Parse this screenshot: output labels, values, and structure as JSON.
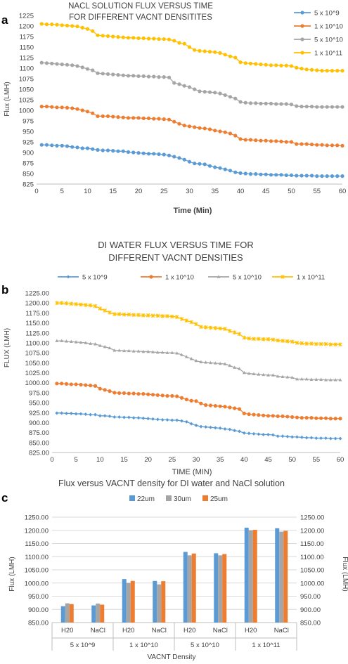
{
  "panels": [
    {
      "letter": "a"
    },
    {
      "letter": "b"
    },
    {
      "letter": "c"
    }
  ],
  "chart_data": [
    {
      "type": "line",
      "title_lines": [
        "NACL SOLUTION FLUX VERSUS TIME",
        "FOR DIFFERENT VACNT DENSITITES"
      ],
      "xlabel": "Time (Min)",
      "ylabel": "Flux (LMH)",
      "xlim": [
        0,
        60
      ],
      "ylim": [
        825,
        1225
      ],
      "xticks": [
        "0",
        "5",
        "10",
        "15",
        "20",
        "25",
        "30",
        "35",
        "40",
        "45",
        "50",
        "55",
        "60"
      ],
      "yticks": [
        "825",
        "850",
        "875",
        "900",
        "925",
        "950",
        "975",
        "1000",
        "1025",
        "1050",
        "1075",
        "1100",
        "1125",
        "1150",
        "1175",
        "1200",
        "1225"
      ],
      "legend_position": "top-right",
      "grid": false,
      "marker": "circle",
      "x": [
        1,
        2,
        3,
        4,
        5,
        6,
        7,
        8,
        9,
        10,
        11,
        12,
        13,
        14,
        15,
        16,
        17,
        18,
        19,
        20,
        21,
        22,
        23,
        24,
        25,
        26,
        27,
        28,
        29,
        30,
        31,
        32,
        33,
        34,
        35,
        36,
        37,
        38,
        39,
        40,
        41,
        42,
        43,
        44,
        45,
        46,
        47,
        48,
        49,
        50,
        51,
        52,
        53,
        54,
        55,
        56,
        57,
        58,
        59,
        60
      ],
      "series": [
        {
          "name": "5 x 10^9",
          "color": "#5b9bd5",
          "values": [
            918,
            918,
            917,
            916,
            916,
            915,
            913,
            912,
            910,
            910,
            908,
            906,
            905,
            905,
            904,
            903,
            903,
            901,
            900,
            899,
            898,
            897,
            897,
            896,
            895,
            893,
            890,
            887,
            883,
            878,
            874,
            873,
            872,
            868,
            865,
            863,
            860,
            857,
            853,
            851,
            850,
            849,
            849,
            848,
            848,
            847,
            847,
            847,
            846,
            846,
            845,
            845,
            845,
            845,
            844,
            844,
            844,
            844,
            844,
            844
          ]
        },
        {
          "name": "1 x 10^10",
          "color": "#ed7d31",
          "values": [
            1009,
            1009,
            1008,
            1007,
            1007,
            1006,
            1005,
            1003,
            1000,
            997,
            993,
            986,
            986,
            986,
            985,
            984,
            983,
            982,
            982,
            982,
            981,
            981,
            980,
            980,
            979,
            978,
            973,
            968,
            964,
            962,
            960,
            958,
            957,
            955,
            952,
            950,
            948,
            945,
            940,
            932,
            930,
            930,
            929,
            928,
            928,
            927,
            927,
            926,
            925,
            925,
            920,
            920,
            920,
            919,
            918,
            918,
            917,
            917,
            917,
            916
          ]
        },
        {
          "name": "5 x 10^10",
          "color": "#a5a5a5",
          "values": [
            1113,
            1112,
            1111,
            1110,
            1109,
            1108,
            1107,
            1105,
            1102,
            1098,
            1095,
            1088,
            1087,
            1086,
            1085,
            1084,
            1083,
            1082,
            1082,
            1081,
            1081,
            1080,
            1080,
            1079,
            1079,
            1078,
            1065,
            1062,
            1058,
            1055,
            1050,
            1045,
            1044,
            1043,
            1042,
            1040,
            1036,
            1032,
            1028,
            1020,
            1018,
            1017,
            1017,
            1016,
            1016,
            1016,
            1015,
            1015,
            1015,
            1014,
            1010,
            1009,
            1009,
            1009,
            1008,
            1008,
            1008,
            1008,
            1008,
            1008
          ]
        },
        {
          "name": "1 x 10^11",
          "color": "#ffc000",
          "values": [
            1205,
            1204,
            1204,
            1203,
            1202,
            1201,
            1200,
            1199,
            1196,
            1193,
            1188,
            1178,
            1177,
            1176,
            1175,
            1174,
            1173,
            1172,
            1172,
            1171,
            1171,
            1170,
            1170,
            1169,
            1169,
            1168,
            1165,
            1160,
            1158,
            1150,
            1143,
            1141,
            1140,
            1139,
            1138,
            1136,
            1132,
            1128,
            1125,
            1114,
            1112,
            1111,
            1110,
            1109,
            1108,
            1107,
            1107,
            1106,
            1106,
            1105,
            1101,
            1099,
            1097,
            1096,
            1095,
            1094,
            1094,
            1094,
            1094,
            1094
          ]
        }
      ]
    },
    {
      "type": "line",
      "title_lines": [
        "DI WATER FLUX VERSUS TIME FOR",
        "DIFFERENT VACNT DENSITIES"
      ],
      "xlabel": "TIME (MIN)",
      "ylabel": "FLUX (LMH)",
      "xlim": [
        0,
        60
      ],
      "ylim": [
        825,
        1225
      ],
      "xticks": [
        "0",
        "5",
        "10",
        "15",
        "20",
        "25",
        "30",
        "35",
        "40",
        "45",
        "50",
        "55",
        "60"
      ],
      "yticks": [
        "825.00",
        "850.00",
        "875.00",
        "900.00",
        "925.00",
        "950.00",
        "975.00",
        "1000.00",
        "1025.00",
        "1050.00",
        "1075.00",
        "1100.00",
        "1125.00",
        "1150.00",
        "1175.00",
        "1200.00",
        "1225.00"
      ],
      "legend_position": "top",
      "grid": false,
      "x": [
        1,
        2,
        3,
        4,
        5,
        6,
        7,
        8,
        9,
        10,
        11,
        12,
        13,
        14,
        15,
        16,
        17,
        18,
        19,
        20,
        21,
        22,
        23,
        24,
        25,
        26,
        27,
        28,
        29,
        30,
        31,
        32,
        33,
        34,
        35,
        36,
        37,
        38,
        39,
        40,
        41,
        42,
        43,
        44,
        45,
        46,
        47,
        48,
        49,
        50,
        51,
        52,
        53,
        54,
        55,
        56,
        57,
        58,
        59,
        60
      ],
      "series": [
        {
          "name": "5 x 10^9",
          "color": "#5b9bd5",
          "marker": "diamond",
          "values": [
            924,
            924,
            923,
            923,
            922,
            922,
            921,
            920,
            920,
            917,
            917,
            916,
            914,
            914,
            913,
            913,
            912,
            912,
            911,
            910,
            909,
            908,
            907,
            907,
            906,
            906,
            904,
            902,
            897,
            893,
            890,
            889,
            888,
            887,
            886,
            884,
            883,
            880,
            878,
            874,
            873,
            872,
            871,
            870,
            870,
            869,
            866,
            866,
            865,
            864,
            864,
            863,
            862,
            862,
            861,
            861,
            861,
            860,
            860,
            860
          ]
        },
        {
          "name": "1 x 10^10",
          "color": "#ed7d31",
          "marker": "circle",
          "values": [
            998,
            998,
            997,
            996,
            996,
            995,
            994,
            993,
            992,
            985,
            982,
            979,
            975,
            974,
            974,
            973,
            973,
            972,
            972,
            971,
            970,
            969,
            968,
            967,
            967,
            966,
            962,
            958,
            955,
            954,
            948,
            944,
            943,
            942,
            941,
            940,
            938,
            936,
            934,
            923,
            921,
            920,
            919,
            918,
            917,
            917,
            916,
            916,
            915,
            914,
            913,
            912,
            912,
            912,
            911,
            911,
            911,
            910,
            910,
            910
          ]
        },
        {
          "name": "5 x 10^10",
          "color": "#a5a5a5",
          "marker": "triangle",
          "values": [
            1105,
            1105,
            1104,
            1103,
            1102,
            1101,
            1100,
            1098,
            1097,
            1093,
            1090,
            1087,
            1081,
            1081,
            1080,
            1080,
            1079,
            1079,
            1078,
            1078,
            1077,
            1076,
            1076,
            1075,
            1075,
            1074,
            1070,
            1065,
            1060,
            1055,
            1052,
            1051,
            1050,
            1049,
            1048,
            1047,
            1043,
            1038,
            1035,
            1025,
            1023,
            1022,
            1021,
            1020,
            1019,
            1019,
            1016,
            1015,
            1014,
            1013,
            1009,
            1009,
            1009,
            1008,
            1008,
            1008,
            1007,
            1007,
            1007,
            1007
          ]
        },
        {
          "name": "1 x 10^11",
          "color": "#ffc000",
          "marker": "star",
          "values": [
            1200,
            1200,
            1199,
            1198,
            1197,
            1196,
            1195,
            1194,
            1192,
            1186,
            1181,
            1176,
            1172,
            1172,
            1171,
            1171,
            1170,
            1170,
            1169,
            1169,
            1168,
            1168,
            1167,
            1167,
            1166,
            1165,
            1160,
            1156,
            1152,
            1147,
            1140,
            1139,
            1138,
            1137,
            1136,
            1135,
            1130,
            1126,
            1122,
            1113,
            1111,
            1110,
            1110,
            1109,
            1109,
            1108,
            1106,
            1105,
            1104,
            1103,
            1100,
            1099,
            1098,
            1098,
            1097,
            1097,
            1097,
            1096,
            1096,
            1096
          ]
        }
      ]
    },
    {
      "type": "bar",
      "title": "Flux versus VACNT density for DI water and NaCl solution",
      "xlabel": "VACNT Density",
      "ylabel": "Flux (LMH)",
      "ylabel_right": "Flux (LMH)",
      "ylim": [
        850,
        1250
      ],
      "yticks": [
        "850.00",
        "900.00",
        "950.00",
        "1000.00",
        "1050.00",
        "1100.00",
        "1150.00",
        "1200.00",
        "1250.00"
      ],
      "legend_position": "top",
      "grid": true,
      "categories": [
        "H20",
        "NaCl",
        "H20",
        "NaCl",
        "H20",
        "NaCl",
        "H20",
        "NaCl"
      ],
      "groups": [
        "5 x 10^9",
        "1 x 10^10",
        "5 x 10^10",
        "1 x 10^11"
      ],
      "series": [
        {
          "name": "22um",
          "color": "#5b9bd5",
          "values": [
            912,
            915,
            1015,
            1008,
            1118,
            1113,
            1210,
            1208
          ]
        },
        {
          "name": "30um",
          "color": "#a5a5a5",
          "values": [
            923,
            922,
            1000,
            995,
            1105,
            1105,
            1200,
            1195
          ]
        },
        {
          "name": "25um",
          "color": "#ed7d31",
          "values": [
            920,
            918,
            1008,
            1007,
            1112,
            1110,
            1202,
            1198
          ]
        }
      ]
    }
  ]
}
